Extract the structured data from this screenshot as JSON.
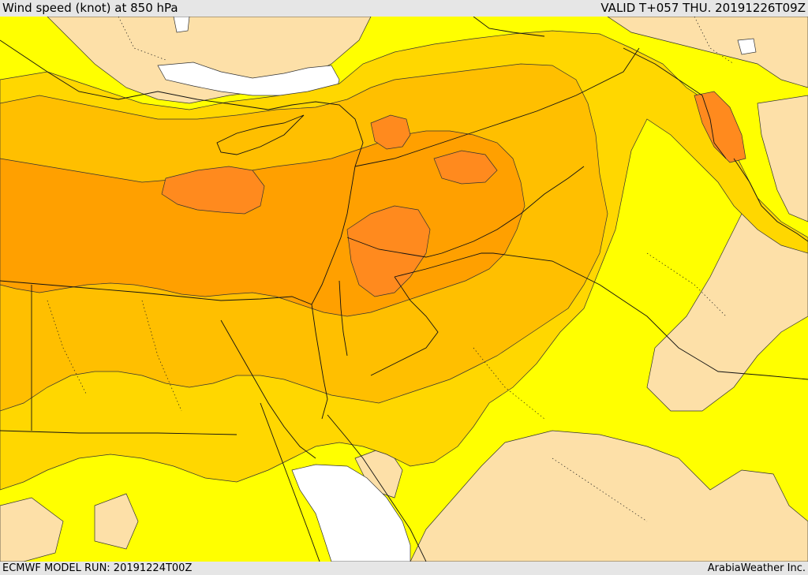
{
  "header": {
    "title": "Wind speed (knot) at 850 hPa",
    "valid": "VALID T+057 THU. 20191226T09Z"
  },
  "footer": {
    "model_run": "ECMWF MODEL RUN: 20191224T00Z",
    "credit": "ArabiaWeather Inc."
  },
  "map": {
    "region": "Eastern Mediterranean and Middle East",
    "colors": {
      "calm_white": "#ffffff",
      "light_tan": "#fde0a8",
      "yellow": "#ffff00",
      "yellow_orange": "#ffd700",
      "amber": "#ffbf00",
      "orange": "#ffa000",
      "deep_orange": "#ff8a1e",
      "background": "#e6e6e6"
    }
  }
}
